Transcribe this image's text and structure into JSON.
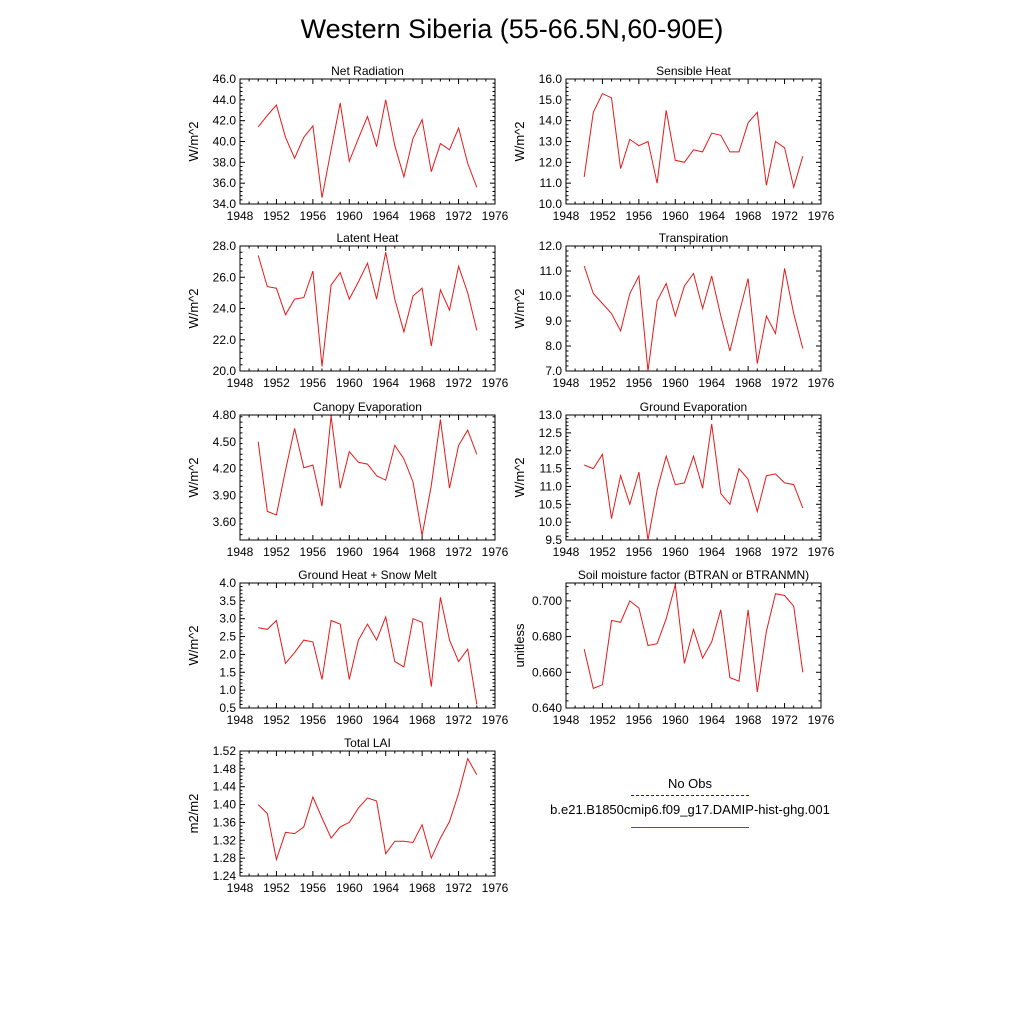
{
  "title": "Western Siberia (55-66.5N,60-90E)",
  "legend": {
    "obs_label": "No Obs",
    "obs_color": "#1a1aa8",
    "model_label": "b.e21.B1850cmip6.f09_g17.DAMIP-hist-ghg.001",
    "model_color": "#e61a1a"
  },
  "chart_data": [
    {
      "type": "line",
      "title": "Net Radiation",
      "ylabel": "W/m^2",
      "xlim": [
        1948,
        1976
      ],
      "ylim": [
        34,
        46
      ],
      "xticks": [
        1948,
        1952,
        1956,
        1960,
        1964,
        1968,
        1972,
        1976
      ],
      "yticks": [
        "34.0",
        "36.0",
        "38.0",
        "40.0",
        "42.0",
        "44.0",
        "46.0"
      ],
      "x": [
        1950,
        1951,
        1952,
        1953,
        1954,
        1955,
        1956,
        1957,
        1958,
        1959,
        1960,
        1961,
        1962,
        1963,
        1964,
        1965,
        1966,
        1967,
        1968,
        1969,
        1970,
        1971,
        1972,
        1973,
        1974
      ],
      "series": [
        {
          "values": [
            41.4,
            42.5,
            43.5,
            40.4,
            38.4,
            40.4,
            41.5,
            34.6,
            39.2,
            43.7,
            38.1,
            40.3,
            42.4,
            39.5,
            44.0,
            39.6,
            36.6,
            40.3,
            42.1,
            37.1,
            39.8,
            39.2,
            41.3,
            37.9,
            35.6
          ]
        }
      ]
    },
    {
      "type": "line",
      "title": "Sensible Heat",
      "ylabel": "W/m^2",
      "xlim": [
        1948,
        1976
      ],
      "ylim": [
        10,
        16
      ],
      "xticks": [
        1948,
        1952,
        1956,
        1960,
        1964,
        1968,
        1972,
        1976
      ],
      "yticks": [
        "10.0",
        "11.0",
        "12.0",
        "13.0",
        "14.0",
        "15.0",
        "16.0"
      ],
      "x": [
        1950,
        1951,
        1952,
        1953,
        1954,
        1955,
        1956,
        1957,
        1958,
        1959,
        1960,
        1961,
        1962,
        1963,
        1964,
        1965,
        1966,
        1967,
        1968,
        1969,
        1970,
        1971,
        1972,
        1973,
        1974
      ],
      "series": [
        {
          "values": [
            11.3,
            14.4,
            15.3,
            15.1,
            11.7,
            13.1,
            12.8,
            13.0,
            11.0,
            14.5,
            12.1,
            12.0,
            12.6,
            12.5,
            13.4,
            13.3,
            12.5,
            12.5,
            13.9,
            14.4,
            10.9,
            13.0,
            12.7,
            10.8,
            12.3
          ]
        }
      ]
    },
    {
      "type": "line",
      "title": "Latent Heat",
      "ylabel": "W/m^2",
      "xlim": [
        1948,
        1976
      ],
      "ylim": [
        20,
        28
      ],
      "xticks": [
        1948,
        1952,
        1956,
        1960,
        1964,
        1968,
        1972,
        1976
      ],
      "yticks": [
        "20.0",
        "22.0",
        "24.0",
        "26.0",
        "28.0"
      ],
      "x": [
        1950,
        1951,
        1952,
        1953,
        1954,
        1955,
        1956,
        1957,
        1958,
        1959,
        1960,
        1961,
        1962,
        1963,
        1964,
        1965,
        1966,
        1967,
        1968,
        1969,
        1970,
        1971,
        1972,
        1973,
        1974
      ],
      "series": [
        {
          "values": [
            27.4,
            25.4,
            25.3,
            23.6,
            24.6,
            24.7,
            26.4,
            20.3,
            25.5,
            26.3,
            24.6,
            25.7,
            26.9,
            24.6,
            27.6,
            24.6,
            22.5,
            24.8,
            25.3,
            21.6,
            25.2,
            23.9,
            26.7,
            25.0,
            22.6
          ]
        }
      ]
    },
    {
      "type": "line",
      "title": "Transpiration",
      "ylabel": "W/m^2",
      "xlim": [
        1948,
        1976
      ],
      "ylim": [
        7,
        12
      ],
      "xticks": [
        1948,
        1952,
        1956,
        1960,
        1964,
        1968,
        1972,
        1976
      ],
      "yticks": [
        "7.0",
        "8.0",
        "9.0",
        "10.0",
        "11.0",
        "12.0"
      ],
      "x": [
        1950,
        1951,
        1952,
        1953,
        1954,
        1955,
        1956,
        1957,
        1958,
        1959,
        1960,
        1961,
        1962,
        1963,
        1964,
        1965,
        1966,
        1967,
        1968,
        1969,
        1970,
        1971,
        1972,
        1973,
        1974
      ],
      "series": [
        {
          "values": [
            11.2,
            10.1,
            9.7,
            9.3,
            8.6,
            10.1,
            10.8,
            7.0,
            9.8,
            10.5,
            9.2,
            10.4,
            10.9,
            9.5,
            10.8,
            9.2,
            7.8,
            9.3,
            10.7,
            7.3,
            9.2,
            8.5,
            11.1,
            9.3,
            7.9
          ]
        }
      ]
    },
    {
      "type": "line",
      "title": "Canopy Evaporation",
      "ylabel": "W/m^2",
      "xlim": [
        1948,
        1976
      ],
      "ylim": [
        3.4,
        4.8
      ],
      "xticks": [
        1948,
        1952,
        1956,
        1960,
        1964,
        1968,
        1972,
        1976
      ],
      "yticks": [
        "3.60",
        "3.90",
        "4.20",
        "4.50",
        "4.80"
      ],
      "x": [
        1950,
        1951,
        1952,
        1953,
        1954,
        1955,
        1956,
        1957,
        1958,
        1959,
        1960,
        1961,
        1962,
        1963,
        1964,
        1965,
        1966,
        1967,
        1968,
        1969,
        1970,
        1971,
        1972,
        1973,
        1974
      ],
      "series": [
        {
          "values": [
            4.5,
            3.72,
            3.68,
            4.18,
            4.65,
            4.21,
            4.24,
            3.78,
            4.79,
            3.98,
            4.39,
            4.27,
            4.25,
            4.12,
            4.07,
            4.46,
            4.31,
            4.05,
            3.45,
            4.01,
            4.75,
            3.98,
            4.46,
            4.63,
            4.36
          ]
        }
      ]
    },
    {
      "type": "line",
      "title": "Ground Evaporation",
      "ylabel": "W/m^2",
      "xlim": [
        1948,
        1976
      ],
      "ylim": [
        9.5,
        13
      ],
      "xticks": [
        1948,
        1952,
        1956,
        1960,
        1964,
        1968,
        1972,
        1976
      ],
      "yticks": [
        "9.5",
        "10.0",
        "10.5",
        "11.0",
        "11.5",
        "12.0",
        "12.5",
        "13.0"
      ],
      "x": [
        1950,
        1951,
        1952,
        1953,
        1954,
        1955,
        1956,
        1957,
        1958,
        1959,
        1960,
        1961,
        1962,
        1963,
        1964,
        1965,
        1966,
        1967,
        1968,
        1969,
        1970,
        1971,
        1972,
        1973,
        1974
      ],
      "series": [
        {
          "values": [
            11.6,
            11.5,
            11.9,
            10.1,
            11.3,
            10.5,
            11.4,
            9.5,
            10.9,
            11.85,
            11.05,
            11.1,
            11.85,
            10.95,
            12.75,
            10.8,
            10.5,
            11.5,
            11.2,
            10.3,
            11.3,
            11.35,
            11.1,
            11.05,
            10.4
          ]
        }
      ]
    },
    {
      "type": "line",
      "title": "Ground Heat + Snow Melt",
      "ylabel": "W/m^2",
      "xlim": [
        1948,
        1976
      ],
      "ylim": [
        0.5,
        4.0
      ],
      "xticks": [
        1948,
        1952,
        1956,
        1960,
        1964,
        1968,
        1972,
        1976
      ],
      "yticks": [
        "0.5",
        "1.0",
        "1.5",
        "2.0",
        "2.5",
        "3.0",
        "3.5",
        "4.0"
      ],
      "x": [
        1950,
        1951,
        1952,
        1953,
        1954,
        1955,
        1956,
        1957,
        1958,
        1959,
        1960,
        1961,
        1962,
        1963,
        1964,
        1965,
        1966,
        1967,
        1968,
        1969,
        1970,
        1971,
        1972,
        1973,
        1974
      ],
      "series": [
        {
          "values": [
            2.75,
            2.7,
            2.95,
            1.75,
            2.05,
            2.4,
            2.35,
            1.3,
            2.95,
            2.85,
            1.3,
            2.4,
            2.85,
            2.4,
            3.05,
            1.8,
            1.65,
            3.0,
            2.9,
            1.1,
            3.6,
            2.4,
            1.8,
            2.15,
            0.6
          ]
        }
      ]
    },
    {
      "type": "line",
      "title": "Soil moisture factor (BTRAN or BTRANMN)",
      "ylabel": "unitless",
      "xlim": [
        1948,
        1976
      ],
      "ylim": [
        0.64,
        0.71
      ],
      "xticks": [
        1948,
        1952,
        1956,
        1960,
        1964,
        1968,
        1972,
        1976
      ],
      "yticks": [
        "0.640",
        "0.660",
        "0.680",
        "0.700"
      ],
      "x": [
        1950,
        1951,
        1952,
        1953,
        1954,
        1955,
        1956,
        1957,
        1958,
        1959,
        1960,
        1961,
        1962,
        1963,
        1964,
        1965,
        1966,
        1967,
        1968,
        1969,
        1970,
        1971,
        1972,
        1973,
        1974
      ],
      "series": [
        {
          "values": [
            0.673,
            0.651,
            0.653,
            0.689,
            0.688,
            0.7,
            0.696,
            0.675,
            0.676,
            0.69,
            0.709,
            0.665,
            0.684,
            0.668,
            0.677,
            0.695,
            0.657,
            0.655,
            0.695,
            0.649,
            0.683,
            0.704,
            0.703,
            0.697,
            0.66
          ]
        }
      ]
    },
    {
      "type": "line",
      "title": "Total LAI",
      "ylabel": "m2/m2",
      "xlim": [
        1948,
        1976
      ],
      "ylim": [
        1.24,
        1.52
      ],
      "xticks": [
        1948,
        1952,
        1956,
        1960,
        1964,
        1968,
        1972,
        1976
      ],
      "yticks": [
        "1.24",
        "1.28",
        "1.32",
        "1.36",
        "1.40",
        "1.44",
        "1.48",
        "1.52"
      ],
      "x": [
        1950,
        1951,
        1952,
        1953,
        1954,
        1955,
        1956,
        1957,
        1958,
        1959,
        1960,
        1961,
        1962,
        1963,
        1964,
        1965,
        1966,
        1967,
        1968,
        1969,
        1970,
        1971,
        1972,
        1973,
        1974
      ],
      "series": [
        {
          "values": [
            1.4,
            1.38,
            1.277,
            1.338,
            1.335,
            1.35,
            1.417,
            1.37,
            1.325,
            1.35,
            1.36,
            1.392,
            1.415,
            1.408,
            1.29,
            1.318,
            1.318,
            1.315,
            1.355,
            1.28,
            1.325,
            1.362,
            1.425,
            1.503,
            1.467
          ]
        }
      ]
    }
  ]
}
